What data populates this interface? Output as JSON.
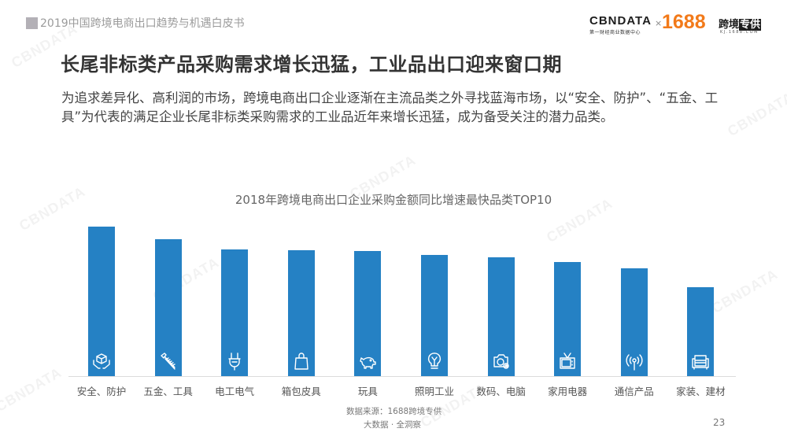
{
  "header": {
    "report_title": "2019中国跨境电商出口趋势与机遇白皮书",
    "logos": {
      "cbndata": "CBNDATA",
      "cbndata_sub": "第一财经商业数据中心",
      "times": "×",
      "brand_1688": "1688",
      "kuajing": "跨境",
      "zhuangong": "专供",
      "kuajing_sub": "KJ.1688.COM"
    }
  },
  "page_title": "长尾非标类产品采购需求增长迅猛，工业品出口迎来窗口期",
  "intro": "为追求差异化、高利润的市场，跨境电商出口企业逐渐在主流品类之外寻找蓝海市场，以“安全、防护”、“五金、工具”为代表的满足企业长尾非标类采购需求的工业品近年来增长迅猛，成为备受关注的潜力品类。",
  "chart_data": {
    "type": "bar",
    "title": "2018年跨境电商出口企业采购金额同比增速最快品类TOP10",
    "categories": [
      "安全、防护",
      "五金、工具",
      "电工电气",
      "箱包皮具",
      "玩具",
      "照明工业",
      "数码、电脑",
      "家用电器",
      "通信产品",
      "家装、建材"
    ],
    "values": [
      190,
      174,
      161,
      160,
      159,
      154,
      151,
      145,
      137,
      113
    ],
    "value_note": "relative bar heights in px (no axis or data labels shown)",
    "icons": [
      "box-in-hands-icon",
      "screw-icon",
      "plug-icon",
      "shopping-bag-icon",
      "piggy-icon",
      "light-bulb-icon",
      "camera-icon",
      "tv-icon",
      "antenna-signal-icon",
      "sofa-icon"
    ],
    "xlabel": "",
    "ylabel": "",
    "grid": false,
    "legend": "none",
    "bar_color": "#2581c4"
  },
  "footer": {
    "source": "数据来源：1688跨境专供",
    "brand": "大数据 · 全洞察",
    "page_number": "23"
  },
  "watermark": "CBNDATA"
}
